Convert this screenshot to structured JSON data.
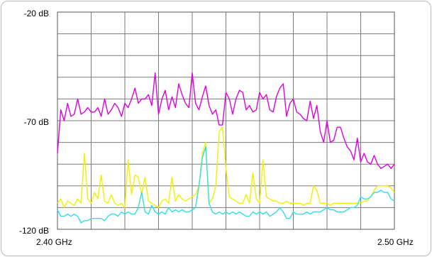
{
  "chart_data": {
    "type": "line",
    "title": "",
    "xlabel": "",
    "ylabel": "",
    "xlim": [
      2.4,
      2.5
    ],
    "ylim": [
      -120,
      -20
    ],
    "y_tick_labels": [
      "-20 dB",
      "-70 dB",
      "-120 dB"
    ],
    "x_tick_labels": [
      "2.40 GHz",
      "2.50 GHz"
    ],
    "grid": true,
    "grid_divisions": {
      "x": 10,
      "y": 10
    },
    "background": "#ffffff",
    "grid_color": "#7a7a7a",
    "series": [
      {
        "color": "#e000e0",
        "x": [
          2.4,
          2.401,
          2.402,
          2.403,
          2.404,
          2.405,
          2.406,
          2.407,
          2.408,
          2.409,
          2.41,
          2.411,
          2.412,
          2.413,
          2.414,
          2.415,
          2.416,
          2.417,
          2.418,
          2.419,
          2.42,
          2.421,
          2.422,
          2.423,
          2.424,
          2.425,
          2.426,
          2.427,
          2.428,
          2.429,
          2.43,
          2.431,
          2.432,
          2.433,
          2.434,
          2.435,
          2.436,
          2.437,
          2.438,
          2.439,
          2.44,
          2.441,
          2.442,
          2.443,
          2.444,
          2.445,
          2.446,
          2.447,
          2.448,
          2.449,
          2.45,
          2.451,
          2.452,
          2.453,
          2.454,
          2.455,
          2.456,
          2.457,
          2.458,
          2.459,
          2.46,
          2.461,
          2.462,
          2.463,
          2.464,
          2.465,
          2.466,
          2.467,
          2.468,
          2.469,
          2.47,
          2.471,
          2.472,
          2.473,
          2.474,
          2.475,
          2.476,
          2.477,
          2.478,
          2.479,
          2.48,
          2.481,
          2.482,
          2.483,
          2.484,
          2.485,
          2.486,
          2.487,
          2.488,
          2.489,
          2.49,
          2.491,
          2.492,
          2.493,
          2.494,
          2.495,
          2.496,
          2.497,
          2.498,
          2.499,
          2.5
        ],
        "y": [
          -85,
          -65,
          -70,
          -62,
          -68,
          -67,
          -60,
          -67,
          -66,
          -64,
          -66,
          -66,
          -64,
          -68,
          -60,
          -67,
          -65,
          -62,
          -64,
          -68,
          -62,
          -64,
          -60,
          -55,
          -62,
          -60,
          -60,
          -58,
          -63,
          -48,
          -67,
          -60,
          -56,
          -65,
          -59,
          -64,
          -53,
          -58,
          -62,
          -64,
          -48,
          -62,
          -65,
          -59,
          -54,
          -63,
          -67,
          -65,
          -72,
          -72,
          -57,
          -60,
          -67,
          -60,
          -56,
          -57,
          -65,
          -63,
          -66,
          -65,
          -57,
          -60,
          -58,
          -65,
          -66,
          -59,
          -55,
          -53,
          -68,
          -62,
          -60,
          -66,
          -67,
          -69,
          -70,
          -61,
          -69,
          -63,
          -75,
          -80,
          -70,
          -80,
          -79,
          -73,
          -73,
          -78,
          -82,
          -84,
          -88,
          -78,
          -89,
          -85,
          -89,
          -90,
          -86,
          -90,
          -92,
          -91,
          -90,
          -92,
          -90
        ]
      },
      {
        "color": "#f0f000",
        "x": [
          2.4,
          2.401,
          2.402,
          2.403,
          2.404,
          2.405,
          2.406,
          2.407,
          2.408,
          2.409,
          2.41,
          2.411,
          2.412,
          2.413,
          2.414,
          2.415,
          2.416,
          2.417,
          2.418,
          2.419,
          2.42,
          2.421,
          2.422,
          2.423,
          2.424,
          2.425,
          2.426,
          2.427,
          2.428,
          2.429,
          2.43,
          2.431,
          2.432,
          2.433,
          2.434,
          2.435,
          2.436,
          2.437,
          2.438,
          2.439,
          2.44,
          2.441,
          2.442,
          2.443,
          2.444,
          2.445,
          2.446,
          2.447,
          2.448,
          2.449,
          2.45,
          2.451,
          2.452,
          2.453,
          2.454,
          2.455,
          2.456,
          2.457,
          2.458,
          2.459,
          2.46,
          2.461,
          2.462,
          2.463,
          2.464,
          2.465,
          2.466,
          2.467,
          2.468,
          2.469,
          2.47,
          2.471,
          2.472,
          2.473,
          2.474,
          2.475,
          2.476,
          2.477,
          2.478,
          2.479,
          2.48,
          2.481,
          2.482,
          2.483,
          2.484,
          2.485,
          2.486,
          2.487,
          2.488,
          2.489,
          2.49,
          2.491,
          2.492,
          2.493,
          2.494,
          2.495,
          2.496,
          2.497,
          2.498,
          2.499,
          2.5
        ],
        "y": [
          -108,
          -106,
          -110,
          -107,
          -108,
          -109,
          -106,
          -108,
          -85,
          -106,
          -108,
          -103,
          -106,
          -95,
          -107,
          -108,
          -104,
          -108,
          -109,
          -108,
          -110,
          -88,
          -104,
          -95,
          -96,
          -104,
          -96,
          -107,
          -108,
          -109,
          -110,
          -107,
          -106,
          -108,
          -96,
          -107,
          -104,
          -106,
          -107,
          -106,
          -105,
          -104,
          -100,
          -85,
          -80,
          -108,
          -106,
          -100,
          -75,
          -73,
          -92,
          -105,
          -106,
          -107,
          -108,
          -108,
          -104,
          -108,
          -94,
          -106,
          -108,
          -88,
          -105,
          -106,
          -107,
          -107,
          -108,
          -108,
          -107,
          -108,
          -108,
          -108,
          -108,
          -109,
          -108,
          -108,
          -100,
          -102,
          -108,
          -108,
          -108,
          -109,
          -108,
          -108,
          -108,
          -108,
          -108,
          -108,
          -108,
          -108,
          -108,
          -107,
          -107,
          -105,
          -102,
          -100,
          -100,
          -100,
          -100,
          -101,
          -103
        ]
      },
      {
        "color": "#30e0e8",
        "x": [
          2.4,
          2.401,
          2.402,
          2.403,
          2.404,
          2.405,
          2.406,
          2.407,
          2.408,
          2.409,
          2.41,
          2.411,
          2.412,
          2.413,
          2.414,
          2.415,
          2.416,
          2.417,
          2.418,
          2.419,
          2.42,
          2.421,
          2.422,
          2.423,
          2.424,
          2.425,
          2.426,
          2.427,
          2.428,
          2.429,
          2.43,
          2.431,
          2.432,
          2.433,
          2.434,
          2.435,
          2.436,
          2.437,
          2.438,
          2.439,
          2.44,
          2.441,
          2.442,
          2.443,
          2.444,
          2.445,
          2.446,
          2.447,
          2.448,
          2.449,
          2.45,
          2.451,
          2.452,
          2.453,
          2.454,
          2.455,
          2.456,
          2.457,
          2.458,
          2.459,
          2.46,
          2.461,
          2.462,
          2.463,
          2.464,
          2.465,
          2.466,
          2.467,
          2.468,
          2.469,
          2.47,
          2.471,
          2.472,
          2.473,
          2.474,
          2.475,
          2.476,
          2.477,
          2.478,
          2.479,
          2.48,
          2.481,
          2.482,
          2.483,
          2.484,
          2.485,
          2.486,
          2.487,
          2.488,
          2.489,
          2.49,
          2.491,
          2.492,
          2.493,
          2.494,
          2.495,
          2.496,
          2.497,
          2.498,
          2.499,
          2.5
        ],
        "y": [
          -111,
          -114,
          -114,
          -113,
          -114,
          -113,
          -114,
          -117,
          -116,
          -116,
          -115,
          -115,
          -115,
          -115,
          -116,
          -114,
          -113,
          -113,
          -114,
          -112,
          -113,
          -112,
          -113,
          -113,
          -110,
          -103,
          -112,
          -113,
          -109,
          -112,
          -113,
          -112,
          -113,
          -110,
          -112,
          -111,
          -112,
          -111,
          -112,
          -112,
          -111,
          -110,
          -100,
          -87,
          -82,
          -108,
          -112,
          -113,
          -112,
          -113,
          -112,
          -113,
          -112,
          -113,
          -112,
          -113,
          -114,
          -114,
          -112,
          -113,
          -112,
          -113,
          -112,
          -114,
          -113,
          -112,
          -110,
          -112,
          -115,
          -115,
          -112,
          -113,
          -113,
          -113,
          -112,
          -113,
          -112,
          -112,
          -112,
          -111,
          -110,
          -111,
          -111,
          -112,
          -112,
          -112,
          -111,
          -110,
          -110,
          -109,
          -105,
          -106,
          -106,
          -105,
          -103,
          -103,
          -102,
          -103,
          -103,
          -106,
          -107
        ]
      }
    ]
  }
}
